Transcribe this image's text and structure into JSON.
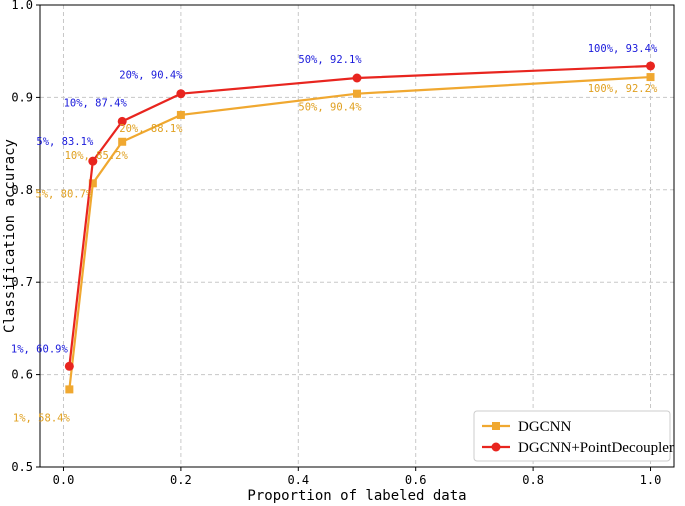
{
  "chart_data": {
    "type": "line",
    "xlabel": "Proportion of labeled data",
    "ylabel": "Classification accuracy",
    "xlim": [
      -0.04,
      1.04
    ],
    "ylim": [
      0.5,
      1.0
    ],
    "xticks": [
      "0.0",
      "0.2",
      "0.4",
      "0.6",
      "0.8",
      "1.0"
    ],
    "yticks": [
      "0.5",
      "0.6",
      "0.7",
      "0.8",
      "0.9",
      "1.0"
    ],
    "grid": true,
    "legend_position": "bottom-right",
    "series": [
      {
        "name": "DGCNN",
        "color": "#f0a830",
        "marker": "square",
        "x": [
          0.01,
          0.05,
          0.1,
          0.2,
          0.5,
          1.0
        ],
        "y": [
          0.584,
          0.807,
          0.852,
          0.881,
          0.904,
          0.922
        ],
        "labels": [
          "1%, 58.4%",
          "5%, 80.7%",
          "10%, 85.2%",
          "20%, 88.1%",
          "50%, 90.4%",
          "100%, 92.2%"
        ]
      },
      {
        "name": "DGCNN+PointDecoupler",
        "color": "#e8251f",
        "marker": "circle",
        "x": [
          0.01,
          0.05,
          0.1,
          0.2,
          0.5,
          1.0
        ],
        "y": [
          0.609,
          0.831,
          0.874,
          0.904,
          0.921,
          0.934
        ],
        "labels": [
          "1%, 60.9%",
          "5%, 83.1%",
          "10%, 87.4%",
          "20%, 90.4%",
          "50%, 92.1%",
          "100%, 93.4%"
        ]
      }
    ]
  },
  "colors": {
    "dgcnn_label": "#e0a020",
    "pointdecoupler_label": "#1a1adb"
  }
}
